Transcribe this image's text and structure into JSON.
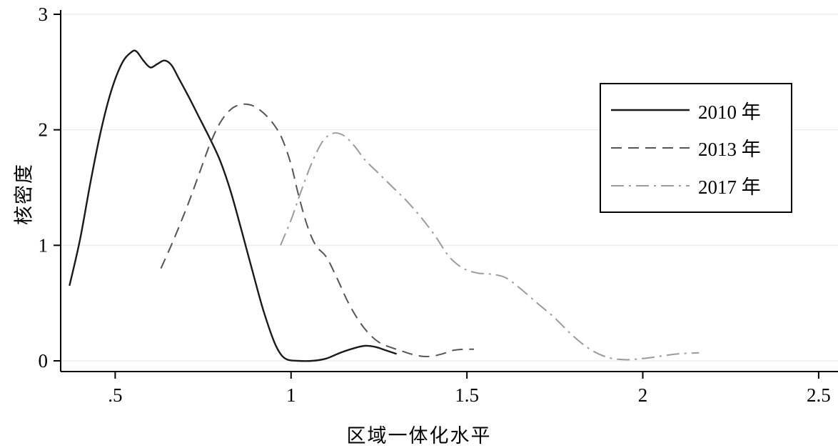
{
  "chart_data": {
    "type": "line",
    "title": "",
    "xlabel": "区域一体化水平",
    "ylabel": "核密度",
    "xlim": [
      0.345,
      2.555
    ],
    "ylim": [
      0,
      3
    ],
    "grid": true,
    "grid_color": "#ededed",
    "axis_color": "#000000",
    "x_tick_labels": [
      ".5",
      "1",
      "1.5",
      "2",
      "2.5"
    ],
    "x_tick_values": [
      0.5,
      1,
      1.5,
      2,
      2.5
    ],
    "y_tick_labels": [
      "0",
      "1",
      "2",
      "3"
    ],
    "y_tick_values": [
      0,
      1,
      2,
      3
    ],
    "legend_position": "upper right",
    "series": [
      {
        "name": "2010 年",
        "color": "#1a1a1a",
        "dash": "",
        "width": 2.4,
        "points": [
          [
            0.37,
            0.65
          ],
          [
            0.4,
            1.05
          ],
          [
            0.43,
            1.55
          ],
          [
            0.46,
            2.0
          ],
          [
            0.49,
            2.35
          ],
          [
            0.52,
            2.58
          ],
          [
            0.545,
            2.67
          ],
          [
            0.56,
            2.68
          ],
          [
            0.58,
            2.6
          ],
          [
            0.6,
            2.54
          ],
          [
            0.62,
            2.57
          ],
          [
            0.64,
            2.6
          ],
          [
            0.66,
            2.56
          ],
          [
            0.68,
            2.45
          ],
          [
            0.71,
            2.28
          ],
          [
            0.74,
            2.1
          ],
          [
            0.77,
            1.92
          ],
          [
            0.8,
            1.72
          ],
          [
            0.83,
            1.45
          ],
          [
            0.86,
            1.12
          ],
          [
            0.89,
            0.78
          ],
          [
            0.92,
            0.45
          ],
          [
            0.95,
            0.18
          ],
          [
            0.97,
            0.06
          ],
          [
            0.99,
            0.01
          ],
          [
            1.02,
            0.0
          ],
          [
            1.06,
            0.0
          ],
          [
            1.1,
            0.02
          ],
          [
            1.14,
            0.07
          ],
          [
            1.18,
            0.11
          ],
          [
            1.21,
            0.13
          ],
          [
            1.24,
            0.12
          ],
          [
            1.27,
            0.09
          ],
          [
            1.3,
            0.06
          ]
        ]
      },
      {
        "name": "2013 年",
        "color": "#555555",
        "dash": "15,9",
        "width": 2,
        "points": [
          [
            0.63,
            0.8
          ],
          [
            0.655,
            0.97
          ],
          [
            0.68,
            1.15
          ],
          [
            0.71,
            1.38
          ],
          [
            0.74,
            1.63
          ],
          [
            0.77,
            1.88
          ],
          [
            0.8,
            2.07
          ],
          [
            0.83,
            2.18
          ],
          [
            0.86,
            2.22
          ],
          [
            0.89,
            2.21
          ],
          [
            0.92,
            2.15
          ],
          [
            0.95,
            2.05
          ],
          [
            0.975,
            1.92
          ],
          [
            1.0,
            1.7
          ],
          [
            1.02,
            1.45
          ],
          [
            1.045,
            1.18
          ],
          [
            1.07,
            1.0
          ],
          [
            1.1,
            0.9
          ],
          [
            1.13,
            0.72
          ],
          [
            1.16,
            0.52
          ],
          [
            1.19,
            0.36
          ],
          [
            1.22,
            0.24
          ],
          [
            1.25,
            0.16
          ],
          [
            1.28,
            0.12
          ],
          [
            1.31,
            0.09
          ],
          [
            1.34,
            0.06
          ],
          [
            1.37,
            0.04
          ],
          [
            1.4,
            0.04
          ],
          [
            1.43,
            0.06
          ],
          [
            1.46,
            0.09
          ],
          [
            1.49,
            0.1
          ],
          [
            1.52,
            0.1
          ]
        ]
      },
      {
        "name": "2017 年",
        "color": "#9b9b9b",
        "dash": "18,7,3,7",
        "width": 2,
        "points": [
          [
            0.97,
            1.0
          ],
          [
            1.0,
            1.22
          ],
          [
            1.03,
            1.48
          ],
          [
            1.06,
            1.72
          ],
          [
            1.09,
            1.9
          ],
          [
            1.12,
            1.97
          ],
          [
            1.15,
            1.95
          ],
          [
            1.18,
            1.86
          ],
          [
            1.21,
            1.74
          ],
          [
            1.25,
            1.62
          ],
          [
            1.29,
            1.5
          ],
          [
            1.33,
            1.38
          ],
          [
            1.37,
            1.24
          ],
          [
            1.41,
            1.08
          ],
          [
            1.45,
            0.9
          ],
          [
            1.49,
            0.8
          ],
          [
            1.53,
            0.76
          ],
          [
            1.57,
            0.75
          ],
          [
            1.61,
            0.72
          ],
          [
            1.65,
            0.63
          ],
          [
            1.7,
            0.5
          ],
          [
            1.75,
            0.37
          ],
          [
            1.8,
            0.22
          ],
          [
            1.85,
            0.1
          ],
          [
            1.9,
            0.03
          ],
          [
            1.95,
            0.01
          ],
          [
            2.0,
            0.02
          ],
          [
            2.05,
            0.04
          ],
          [
            2.1,
            0.06
          ],
          [
            2.16,
            0.07
          ]
        ]
      }
    ]
  }
}
